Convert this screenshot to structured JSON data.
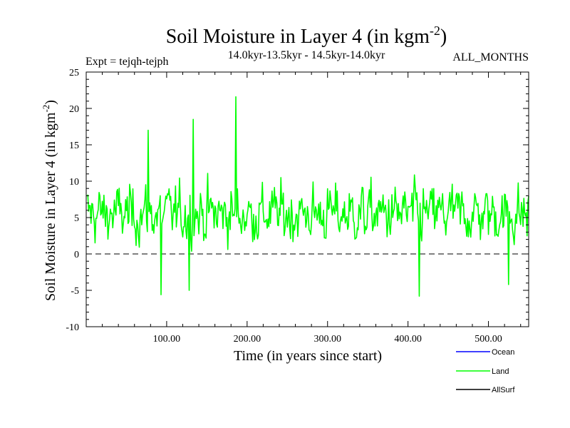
{
  "chart_data": {
    "type": "line",
    "title": "Soil Moisture in Layer 4 (in kgm",
    "title_sup": "-2",
    "title_close": ")",
    "expt_label": "Expt = tejqh-tejph",
    "period_label": "14.0kyr-13.5kyr - 14.5kyr-14.0kyr",
    "months_label": "ALL_MONTHS",
    "xlabel": "Time (in years since start)",
    "ylabel": "Soil Moisture in Layer 4 (in kgm",
    "ylabel_sup": "-2",
    "ylabel_close": ")",
    "xlim": [
      0,
      550
    ],
    "ylim": [
      -10,
      25
    ],
    "x_ticks": [
      100,
      200,
      300,
      400,
      500
    ],
    "x_tick_labels": [
      "100.00",
      "200.00",
      "300.00",
      "400.00",
      "500.00"
    ],
    "y_ticks": [
      -10,
      -5,
      0,
      5,
      10,
      15,
      20,
      25
    ],
    "y_tick_labels": [
      "-10",
      "-5",
      "0",
      "5",
      "10",
      "15",
      "20",
      "25"
    ],
    "reference_line": {
      "y": 0,
      "style": "dashed"
    },
    "legend_position": "bottom-right",
    "series": [
      {
        "name": "Ocean",
        "color": "#0000ff",
        "values": []
      },
      {
        "name": "Land",
        "color": "#00ff00",
        "mean": 5.5,
        "x_start": 1,
        "x_step": 1,
        "approx_extremes": [
          {
            "x": 186,
            "y": 21.6
          },
          {
            "x": 133,
            "y": 18.5
          },
          {
            "x": 77,
            "y": 17.0
          },
          {
            "x": 93,
            "y": -5.6
          },
          {
            "x": 128,
            "y": -5.0
          },
          {
            "x": 414,
            "y": -5.8
          },
          {
            "x": 525,
            "y": -4.2
          }
        ]
      },
      {
        "name": "AllSurf",
        "color": "#000000",
        "values": []
      }
    ]
  }
}
